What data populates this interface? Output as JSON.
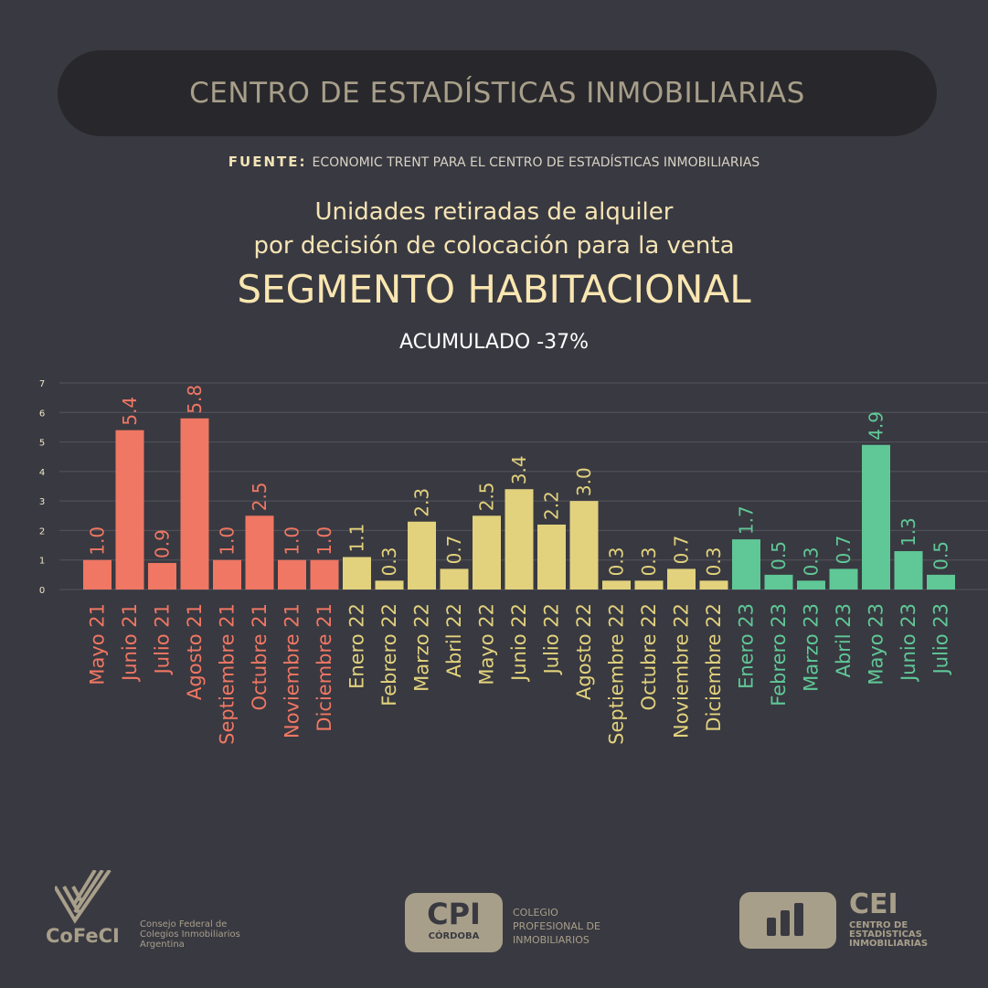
{
  "header": {
    "title": "CENTRO DE ESTADÍSTICAS INMOBILIARIAS",
    "fuente_label": "FUENTE:",
    "fuente_text": "ECONOMIC TRENT PARA EL CENTRO DE ESTADÍSTICAS INMOBILIARIAS"
  },
  "chart_data": {
    "type": "bar",
    "title_line1": "Unidades retiradas de alquiler",
    "title_line2": "por decisión de colocación para la venta",
    "subtitle": "SEGMENTO HABITACIONAL",
    "annotation": "ACUMULADO -37%",
    "ylim": [
      0,
      7
    ],
    "yticks": [
      0,
      1,
      2,
      3,
      4,
      5,
      6,
      7
    ],
    "grid": true,
    "categories": [
      "Mayo 21",
      "Junio 21",
      "Julio 21",
      "Agosto 21",
      "Septiembre 21",
      "Octubre 21",
      "Noviembre 21",
      "Diciembre 21",
      "Enero 22",
      "Febrero 22",
      "Marzo 22",
      "Abril 22",
      "Mayo 22",
      "Junio 22",
      "Julio 22",
      "Agosto 22",
      "Septiembre 22",
      "Octubre 22",
      "Noviembre 22",
      "Diciembre 22",
      "Enero 23",
      "Febrero 23",
      "Marzo 23",
      "Abril 23",
      "Mayo 23",
      "Junio 23",
      "Julio 23"
    ],
    "values": [
      1.0,
      5.4,
      0.9,
      5.8,
      1.0,
      2.5,
      1.0,
      1.0,
      1.1,
      0.3,
      2.3,
      0.7,
      2.5,
      3.4,
      2.2,
      3.0,
      0.3,
      0.3,
      0.7,
      0.3,
      1.7,
      0.5,
      0.3,
      0.7,
      4.9,
      1.3,
      0.5
    ],
    "labels": [
      "1.0",
      "5.4",
      "0.9",
      "5.8",
      "1.0",
      "2.5",
      "1.0",
      "1.0",
      "1.1",
      "0.3",
      "2.3",
      "0.7",
      "2.5",
      "3.4",
      "2.2",
      "3.0",
      "0.3",
      "0.3",
      "0.7",
      "0.3",
      "1.7",
      "0.5",
      "0.3",
      "0.7",
      "4.9",
      "1.3",
      "0.5"
    ],
    "year_colors": {
      "21": "#f07763",
      "22": "#e2d27d",
      "23": "#5fc896"
    }
  },
  "footer": {
    "cofeci": {
      "name": "CoFeCI",
      "line1": "Consejo Federal de",
      "line2": "Colegios Inmobiliarios",
      "line3": "Argentina"
    },
    "cpi": {
      "mark": "CPI",
      "sub": "CÓRDOBA",
      "line1": "COLEGIO",
      "line2": "PROFESIONAL DE",
      "line3": "INMOBILIARIOS"
    },
    "cei": {
      "mark": "CEI",
      "line1": "CENTRO DE",
      "line2": "ESTADÍSTICAS",
      "line3": "INMOBILIARIAS"
    }
  }
}
